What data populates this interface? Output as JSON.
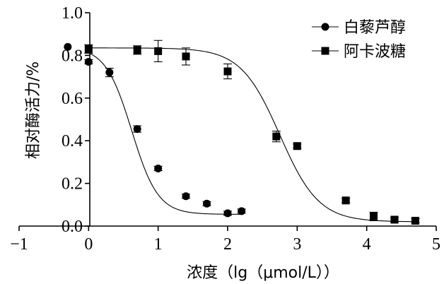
{
  "chart_data": {
    "type": "scatter",
    "xlabel": "浓度（lg（μmol/L））",
    "ylabel": "相对酶活力/%",
    "xlim": [
      -1,
      5
    ],
    "ylim": [
      0,
      1.0
    ],
    "x_ticks": [
      {
        "value": -1,
        "label": "−1"
      },
      {
        "value": 0,
        "label": "0"
      },
      {
        "value": 1,
        "label": "1"
      },
      {
        "value": 2,
        "label": "2"
      },
      {
        "value": 3,
        "label": "3"
      },
      {
        "value": 4,
        "label": "4"
      },
      {
        "value": 5,
        "label": "5"
      }
    ],
    "y_ticks": [
      {
        "value": 0.0,
        "label": "0.0"
      },
      {
        "value": 0.2,
        "label": "0.2"
      },
      {
        "value": 0.4,
        "label": "0.4"
      },
      {
        "value": 0.6,
        "label": "0.6"
      },
      {
        "value": 0.8,
        "label": "0.8"
      },
      {
        "value": 1.0,
        "label": "1.0"
      }
    ],
    "grid": false,
    "legend_position": "top-right",
    "series": [
      {
        "name": "白藜芦醇",
        "marker": "circle",
        "points": [
          {
            "x": -0.3,
            "y": 0.84,
            "err": 0.0
          },
          {
            "x": 0.0,
            "y": 0.77,
            "err": 0.01
          },
          {
            "x": 0.3,
            "y": 0.72,
            "err": 0.02
          },
          {
            "x": 0.7,
            "y": 0.455,
            "err": 0.015
          },
          {
            "x": 1.0,
            "y": 0.27,
            "err": 0.01
          },
          {
            "x": 1.4,
            "y": 0.14,
            "err": 0.01
          },
          {
            "x": 1.7,
            "y": 0.105,
            "err": 0.01
          },
          {
            "x": 2.0,
            "y": 0.06,
            "err": 0.01
          },
          {
            "x": 2.2,
            "y": 0.07,
            "err": 0.01
          }
        ],
        "fit": {
          "bottom": 0.055,
          "top": 0.84,
          "log_ic50": 0.62,
          "hill": 2.3,
          "x_range": [
            0.0,
            2.2
          ]
        }
      },
      {
        "name": "阿卡波糖",
        "marker": "square",
        "points": [
          {
            "x": 0.0,
            "y": 0.83,
            "err": 0.02
          },
          {
            "x": 0.7,
            "y": 0.825,
            "err": 0.02
          },
          {
            "x": 1.0,
            "y": 0.82,
            "err": 0.05
          },
          {
            "x": 1.4,
            "y": 0.795,
            "err": 0.04
          },
          {
            "x": 2.0,
            "y": 0.725,
            "err": 0.035
          },
          {
            "x": 2.7,
            "y": 0.42,
            "err": 0.025
          },
          {
            "x": 3.0,
            "y": 0.375,
            "err": 0.01
          },
          {
            "x": 3.7,
            "y": 0.12,
            "err": 0.01
          },
          {
            "x": 4.1,
            "y": 0.045,
            "err": 0.02
          },
          {
            "x": 4.4,
            "y": 0.03,
            "err": 0.01
          },
          {
            "x": 4.7,
            "y": 0.025,
            "err": 0.01
          }
        ],
        "fit": {
          "bottom": 0.02,
          "top": 0.835,
          "log_ic50": 2.75,
          "hill": 1.55,
          "x_range": [
            0.0,
            4.7
          ]
        }
      }
    ]
  }
}
